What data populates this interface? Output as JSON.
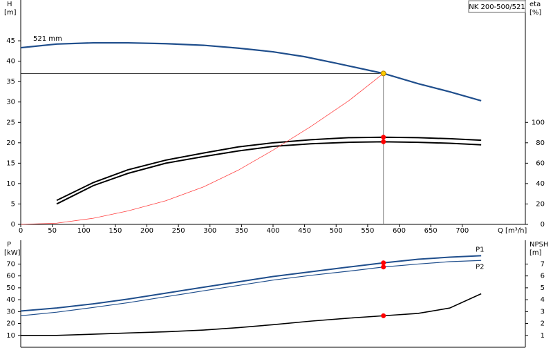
{
  "chart_data": [
    {
      "type": "line",
      "y_label": "H",
      "y_unit": "[m]",
      "y2_label": "eta",
      "y2_unit": "[%]",
      "x_label": "Q [m³/h]",
      "annotation": "NK 200-500/521",
      "xlim": [
        0,
        800
      ],
      "xticks": [
        0,
        50,
        100,
        150,
        200,
        250,
        300,
        350,
        400,
        450,
        500,
        550,
        600,
        650,
        700
      ],
      "ylim": [
        0,
        55
      ],
      "yticks": [
        0,
        5,
        10,
        15,
        20,
        25,
        30,
        35,
        40,
        45
      ],
      "y2lim": [
        0,
        220
      ],
      "y2ticks": [
        0,
        20,
        40,
        60,
        80,
        100
      ],
      "grid": false,
      "series": [
        {
          "name": "521 mm",
          "color": "#1f4e8c",
          "width": 2.2,
          "x": [
            0,
            57,
            115,
            170,
            230,
            290,
            345,
            400,
            450,
            500,
            575,
            630,
            680,
            730
          ],
          "values": [
            43.3,
            44.2,
            44.5,
            44.5,
            44.3,
            43.9,
            43.2,
            42.3,
            41.1,
            39.5,
            37.0,
            34.5,
            32.5,
            30.3
          ]
        },
        {
          "color": "#000000",
          "width": 2,
          "axis": "y2",
          "x": [
            57,
            115,
            170,
            230,
            290,
            345,
            400,
            460,
            520,
            575,
            630,
            680,
            730
          ],
          "values": [
            23.5,
            41,
            53.5,
            63,
            70,
            76,
            80,
            83,
            85,
            85.5,
            85,
            84,
            82.5
          ]
        },
        {
          "color": "#000000",
          "width": 2,
          "axis": "y2",
          "x": [
            57,
            115,
            170,
            230,
            290,
            345,
            400,
            460,
            520,
            575,
            630,
            680,
            730
          ],
          "values": [
            20,
            38,
            50,
            60,
            66.5,
            72,
            76.5,
            79,
            80.5,
            81,
            80.5,
            79.5,
            78
          ]
        },
        {
          "color": "#ff4040",
          "width": 0.8,
          "x": [
            0,
            57,
            115,
            170,
            230,
            290,
            345,
            400,
            460,
            520,
            575
          ],
          "values": [
            0,
            0.3,
            1.5,
            3.3,
            5.8,
            9.2,
            13.3,
            18.2,
            24,
            30.3,
            37
          ]
        }
      ],
      "duty_point": {
        "x": 575,
        "y": 37
      },
      "markers": [
        {
          "x": 575,
          "y": 85.5,
          "axis": "y2",
          "color": "#ff0000"
        },
        {
          "x": 575,
          "y": 81,
          "axis": "y2",
          "color": "#ff0000"
        },
        {
          "x": 575,
          "y": 37,
          "color": "#ffcc00"
        }
      ]
    },
    {
      "type": "line",
      "y_label": "P",
      "y_unit": "[kW]",
      "y2_label": "NPSH",
      "y2_unit": "[m]",
      "xlim": [
        0,
        800
      ],
      "ylim": [
        0,
        90
      ],
      "yticks": [
        10,
        20,
        30,
        40,
        50,
        60,
        70
      ],
      "y2lim": [
        0,
        9
      ],
      "y2ticks": [
        1,
        2,
        3,
        4,
        5,
        6,
        7
      ],
      "grid": false,
      "series": [
        {
          "name": "P1",
          "color": "#1f4e8c",
          "width": 2,
          "x": [
            0,
            57,
            115,
            170,
            230,
            290,
            345,
            400,
            460,
            520,
            575,
            630,
            680,
            730
          ],
          "values": [
            30.5,
            33,
            36.5,
            40.5,
            45.5,
            50.5,
            55,
            59.5,
            63.5,
            67.5,
            71,
            74,
            75.8,
            77
          ]
        },
        {
          "name": "P2",
          "color": "#1f4e8c",
          "width": 1.2,
          "x": [
            0,
            57,
            115,
            170,
            230,
            290,
            345,
            400,
            460,
            520,
            575,
            630,
            680,
            730
          ],
          "values": [
            26.5,
            29.5,
            33.5,
            37.5,
            42.5,
            47.5,
            52,
            56.5,
            60.5,
            64,
            67.5,
            70,
            72,
            73
          ]
        },
        {
          "color": "#000000",
          "width": 1.6,
          "axis": "y2",
          "x": [
            0,
            57,
            115,
            170,
            230,
            290,
            345,
            400,
            460,
            520,
            575,
            630,
            680,
            730
          ],
          "values": [
            1,
            1,
            1.1,
            1.2,
            1.3,
            1.45,
            1.65,
            1.9,
            2.2,
            2.45,
            2.65,
            2.85,
            3.3,
            4.5
          ]
        }
      ],
      "markers": [
        {
          "x": 575,
          "y": 71,
          "color": "#ff0000"
        },
        {
          "x": 575,
          "y": 67.5,
          "color": "#ff0000"
        },
        {
          "x": 575,
          "y": 2.65,
          "axis": "y2",
          "color": "#ff0000"
        }
      ]
    }
  ]
}
